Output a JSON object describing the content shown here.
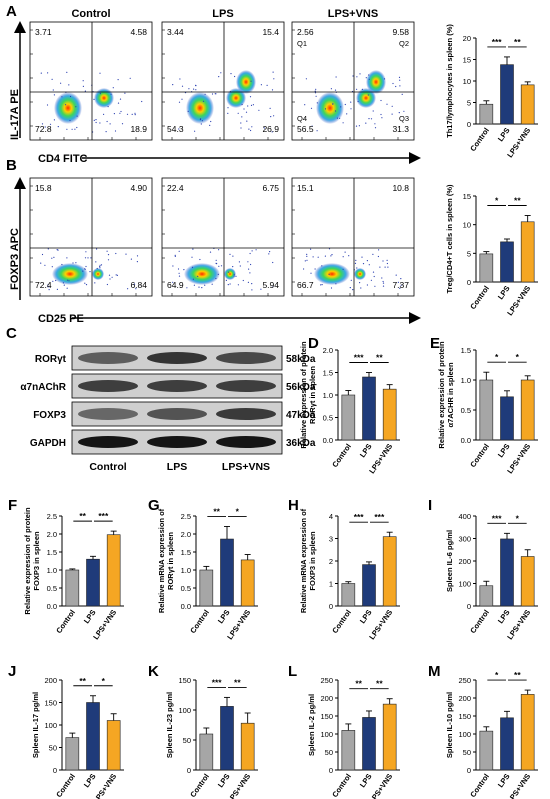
{
  "colors": {
    "control": "#a6a6a6",
    "lps": "#1f3b7a",
    "vns": "#f5a623"
  },
  "panelA": {
    "label": "A",
    "y_label": "IL-17A PE",
    "x_label": "CD4 FITC",
    "plots": [
      {
        "title": "Control",
        "q": [
          "3.71",
          "4.58",
          "72.8",
          "18.9"
        ]
      },
      {
        "title": "LPS",
        "q": [
          "3.44",
          "15.4",
          "54.3",
          "26.9"
        ]
      },
      {
        "title": "LPS+VNS",
        "q": [
          "2.56",
          "9.58",
          "56.5",
          "31.3"
        ],
        "qnames": [
          "Q1",
          "Q2",
          "Q4",
          "Q3"
        ]
      }
    ]
  },
  "panelB": {
    "label": "B",
    "y_label": "FOXP3 APC",
    "x_label": "CD25 PE",
    "plots": [
      {
        "q": [
          "15.8",
          "4.90",
          "72.4",
          "6.84"
        ]
      },
      {
        "q": [
          "22.4",
          "6.75",
          "64.9",
          "5.94"
        ]
      },
      {
        "q": [
          "15.1",
          "10.8",
          "66.7",
          "7.37"
        ]
      }
    ]
  },
  "panelC": {
    "label": "C",
    "rows": [
      {
        "name": "RORγt",
        "kda": "58kDa"
      },
      {
        "name": "α7nAChR",
        "kda": "56kDa"
      },
      {
        "name": "FOXP3",
        "kda": "47kDa"
      },
      {
        "name": "GAPDH",
        "kda": "36kDa"
      }
    ],
    "lanes": [
      "Control",
      "LPS",
      "LPS+VNS"
    ]
  },
  "chart_data": [
    {
      "panel": "A",
      "type": "bar",
      "ylabel": "Th17/lymphocytes in spleen (%)",
      "categories": [
        "Control",
        "LPS",
        "LPS+VNS"
      ],
      "values": [
        4.6,
        13.8,
        9.1
      ],
      "errors": [
        0.8,
        1.8,
        0.7
      ],
      "ylim": [
        0,
        20
      ],
      "yticks": [
        "0",
        "5",
        "10",
        "15",
        "20"
      ],
      "sig": [
        {
          "from": 0,
          "to": 1,
          "label": "***"
        },
        {
          "from": 1,
          "to": 2,
          "label": "**"
        }
      ]
    },
    {
      "panel": "B",
      "type": "bar",
      "ylabel": "Treg/CD4+T cells in spleen (%)",
      "categories": [
        "Control",
        "LPS",
        "LPS+VNS"
      ],
      "values": [
        4.9,
        7.0,
        10.5
      ],
      "errors": [
        0.4,
        0.5,
        1.1
      ],
      "ylim": [
        0,
        15
      ],
      "yticks": [
        "0",
        "5",
        "10",
        "15"
      ],
      "sig": [
        {
          "from": 0,
          "to": 1,
          "label": "*"
        },
        {
          "from": 1,
          "to": 2,
          "label": "**"
        }
      ]
    },
    {
      "panel": "D",
      "type": "bar",
      "ylabel": "Relative expression of protein RORγt in spleen",
      "categories": [
        "Control",
        "LPS",
        "LPS+VNS"
      ],
      "values": [
        1.0,
        1.4,
        1.13
      ],
      "errors": [
        0.1,
        0.1,
        0.1
      ],
      "ylim": [
        0,
        2.0
      ],
      "yticks": [
        "0.0",
        "0.5",
        "1.0",
        "1.5",
        "2.0"
      ],
      "sig": [
        {
          "from": 0,
          "to": 1,
          "label": "***"
        },
        {
          "from": 1,
          "to": 2,
          "label": "**"
        }
      ]
    },
    {
      "panel": "E",
      "type": "bar",
      "ylabel": "Relative expression of protein α7ACHR in spleen",
      "categories": [
        "Control",
        "LPS",
        "LPS+VNS"
      ],
      "values": [
        1.0,
        0.72,
        1.0
      ],
      "errors": [
        0.13,
        0.1,
        0.07
      ],
      "ylim": [
        0,
        1.5
      ],
      "yticks": [
        "0.0",
        "0.5",
        "1.0",
        "1.5"
      ],
      "sig": [
        {
          "from": 0,
          "to": 1,
          "label": "*"
        },
        {
          "from": 1,
          "to": 2,
          "label": "*"
        }
      ]
    },
    {
      "panel": "F",
      "type": "bar",
      "ylabel": "Relative expression of protein FOXP3 in spleen",
      "categories": [
        "Control",
        "LPS",
        "LPS+VNS"
      ],
      "values": [
        1.0,
        1.3,
        1.98
      ],
      "errors": [
        0.03,
        0.08,
        0.1
      ],
      "ylim": [
        0,
        2.5
      ],
      "yticks": [
        "0.0",
        "0.5",
        "1.0",
        "1.5",
        "2.0",
        "2.5"
      ],
      "sig": [
        {
          "from": 0,
          "to": 1,
          "label": "**"
        },
        {
          "from": 1,
          "to": 2,
          "label": "***"
        }
      ]
    },
    {
      "panel": "G",
      "type": "bar",
      "ylabel": "Relative mRNA expression of RORγt in spleen",
      "categories": [
        "Control",
        "LPS",
        "LPS+VNS"
      ],
      "values": [
        1.0,
        1.86,
        1.28
      ],
      "errors": [
        0.1,
        0.35,
        0.15
      ],
      "ylim": [
        0,
        2.5
      ],
      "yticks": [
        "0.0",
        "0.5",
        "1.0",
        "1.5",
        "2.0",
        "2.5"
      ],
      "sig": [
        {
          "from": 0,
          "to": 1,
          "label": "**"
        },
        {
          "from": 1,
          "to": 2,
          "label": "*"
        }
      ]
    },
    {
      "panel": "H",
      "type": "bar",
      "ylabel": "Relative mRNA expression of FOXP3 in spleen",
      "categories": [
        "Control",
        "LPS",
        "LPS+VNS"
      ],
      "values": [
        1.0,
        1.84,
        3.08
      ],
      "errors": [
        0.08,
        0.12,
        0.2
      ],
      "ylim": [
        0,
        4
      ],
      "yticks": [
        "0",
        "1",
        "2",
        "3",
        "4"
      ],
      "sig": [
        {
          "from": 0,
          "to": 1,
          "label": "***"
        },
        {
          "from": 1,
          "to": 2,
          "label": "***"
        }
      ]
    },
    {
      "panel": "I",
      "type": "bar",
      "ylabel": "Spleen IL-6 pg/ml",
      "categories": [
        "Control",
        "LPS",
        "LPS+VNS"
      ],
      "values": [
        90,
        298,
        220
      ],
      "errors": [
        20,
        25,
        30
      ],
      "ylim": [
        0,
        400
      ],
      "yticks": [
        "0",
        "100",
        "200",
        "300",
        "400"
      ],
      "sig": [
        {
          "from": 0,
          "to": 1,
          "label": "***"
        },
        {
          "from": 1,
          "to": 2,
          "label": "*"
        }
      ]
    },
    {
      "panel": "J",
      "type": "bar",
      "ylabel": "Spleen IL-17 pg/ml",
      "categories": [
        "Control",
        "LPS",
        "LPS+VNS"
      ],
      "values": [
        72,
        150,
        110
      ],
      "errors": [
        10,
        15,
        15
      ],
      "ylim": [
        0,
        200
      ],
      "yticks": [
        "0",
        "50",
        "100",
        "150",
        "200"
      ],
      "sig": [
        {
          "from": 0,
          "to": 1,
          "label": "**"
        },
        {
          "from": 1,
          "to": 2,
          "label": "*"
        }
      ]
    },
    {
      "panel": "K",
      "type": "bar",
      "ylabel": "Spleen IL-23 pg/ml",
      "categories": [
        "Control",
        "LPS",
        "LPS+VNS"
      ],
      "values": [
        60,
        106,
        78
      ],
      "errors": [
        10,
        15,
        17
      ],
      "ylim": [
        0,
        150
      ],
      "yticks": [
        "0",
        "50",
        "100",
        "150"
      ],
      "sig": [
        {
          "from": 0,
          "to": 1,
          "label": "***"
        },
        {
          "from": 1,
          "to": 2,
          "label": "**"
        }
      ]
    },
    {
      "panel": "L",
      "type": "bar",
      "ylabel": "Spleen IL-2 pg/ml",
      "categories": [
        "Control",
        "LPS",
        "LPS+VNS"
      ],
      "values": [
        110,
        146,
        183
      ],
      "errors": [
        18,
        18,
        15
      ],
      "ylim": [
        0,
        250
      ],
      "yticks": [
        "0",
        "50",
        "100",
        "150",
        "200",
        "250"
      ],
      "sig": [
        {
          "from": 0,
          "to": 1,
          "label": "**"
        },
        {
          "from": 1,
          "to": 2,
          "label": "**"
        }
      ]
    },
    {
      "panel": "M",
      "type": "bar",
      "ylabel": "Spleen IL-10 pg/ml",
      "categories": [
        "Control",
        "LPS",
        "LPS+VNS"
      ],
      "values": [
        108,
        145,
        210
      ],
      "errors": [
        12,
        18,
        12
      ],
      "ylim": [
        0,
        250
      ],
      "yticks": [
        "0",
        "50",
        "100",
        "150",
        "200",
        "250"
      ],
      "sig": [
        {
          "from": 0,
          "to": 1,
          "label": "*"
        },
        {
          "from": 1,
          "to": 2,
          "label": "**"
        }
      ]
    }
  ]
}
